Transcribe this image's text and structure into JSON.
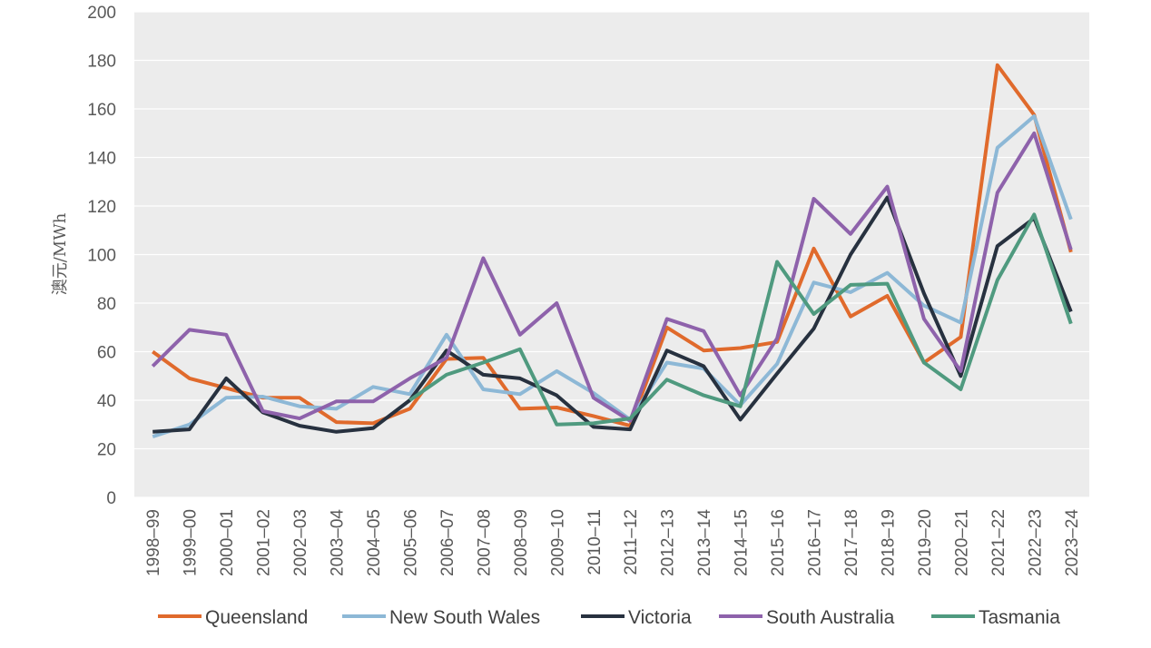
{
  "chart_data": {
    "type": "line",
    "title": "",
    "xlabel": "",
    "ylabel": "澳元/MWh",
    "ylim": [
      0,
      200
    ],
    "yticks": [
      0,
      20,
      40,
      60,
      80,
      100,
      120,
      140,
      160,
      180,
      200
    ],
    "grid": "horizontal",
    "legend_position": "bottom",
    "categories": [
      "1998–99",
      "1999–00",
      "2000–01",
      "2001–02",
      "2002–03",
      "2003–04",
      "2004–05",
      "2005–06",
      "2006–07",
      "2007–08",
      "2008–09",
      "2009–10",
      "2010–11",
      "2011–12",
      "2012–13",
      "2013–14",
      "2014–15",
      "2015–16",
      "2016–17",
      "2017–18",
      "2018–19",
      "2019–20",
      "2020–21",
      "2021–22",
      "2022–23",
      "2023–24"
    ],
    "series": [
      {
        "name": "Queensland",
        "color": "#E06A2C",
        "values": [
          60,
          49,
          45,
          41,
          41,
          31,
          30.5,
          36.5,
          57,
          57.5,
          36.5,
          37,
          33.5,
          29.5,
          70,
          60.5,
          61.5,
          64,
          102.5,
          74.5,
          83,
          55.5,
          66,
          178,
          157.5,
          101
        ]
      },
      {
        "name": "New South Wales",
        "color": "#8DB8D6",
        "values": [
          25,
          30,
          41,
          41.5,
          37.5,
          36.5,
          45.5,
          42.5,
          67,
          44.5,
          42.5,
          52,
          43,
          32,
          55.5,
          53,
          38,
          55,
          88.5,
          84.5,
          92.5,
          79,
          72,
          144,
          157,
          114.5
        ]
      },
      {
        "name": "Victoria",
        "color": "#27313F",
        "values": [
          27,
          28,
          49,
          35,
          29.5,
          27,
          28.5,
          40,
          60.5,
          50.5,
          49,
          42,
          29,
          28,
          60.5,
          54,
          32,
          51,
          69.5,
          100,
          123.5,
          84,
          50,
          103.5,
          115,
          76.5
        ]
      },
      {
        "name": "South Australia",
        "color": "#8E62AB",
        "values": [
          54,
          69,
          67,
          35.5,
          32.5,
          39.5,
          39.5,
          49,
          57.5,
          98.5,
          67,
          80,
          41,
          31.5,
          73.5,
          68.5,
          42,
          65.5,
          123,
          108.5,
          128,
          73.5,
          52,
          125.5,
          150,
          102
        ]
      },
      {
        "name": "Tasmania",
        "color": "#4F9A7F",
        "values": [
          null,
          null,
          null,
          null,
          null,
          null,
          null,
          40,
          50.5,
          55.5,
          61,
          30,
          30.5,
          32.5,
          48.5,
          42,
          37.5,
          97,
          75.5,
          87.5,
          88,
          55.5,
          44.5,
          89.5,
          116.5,
          71.5
        ]
      }
    ]
  }
}
